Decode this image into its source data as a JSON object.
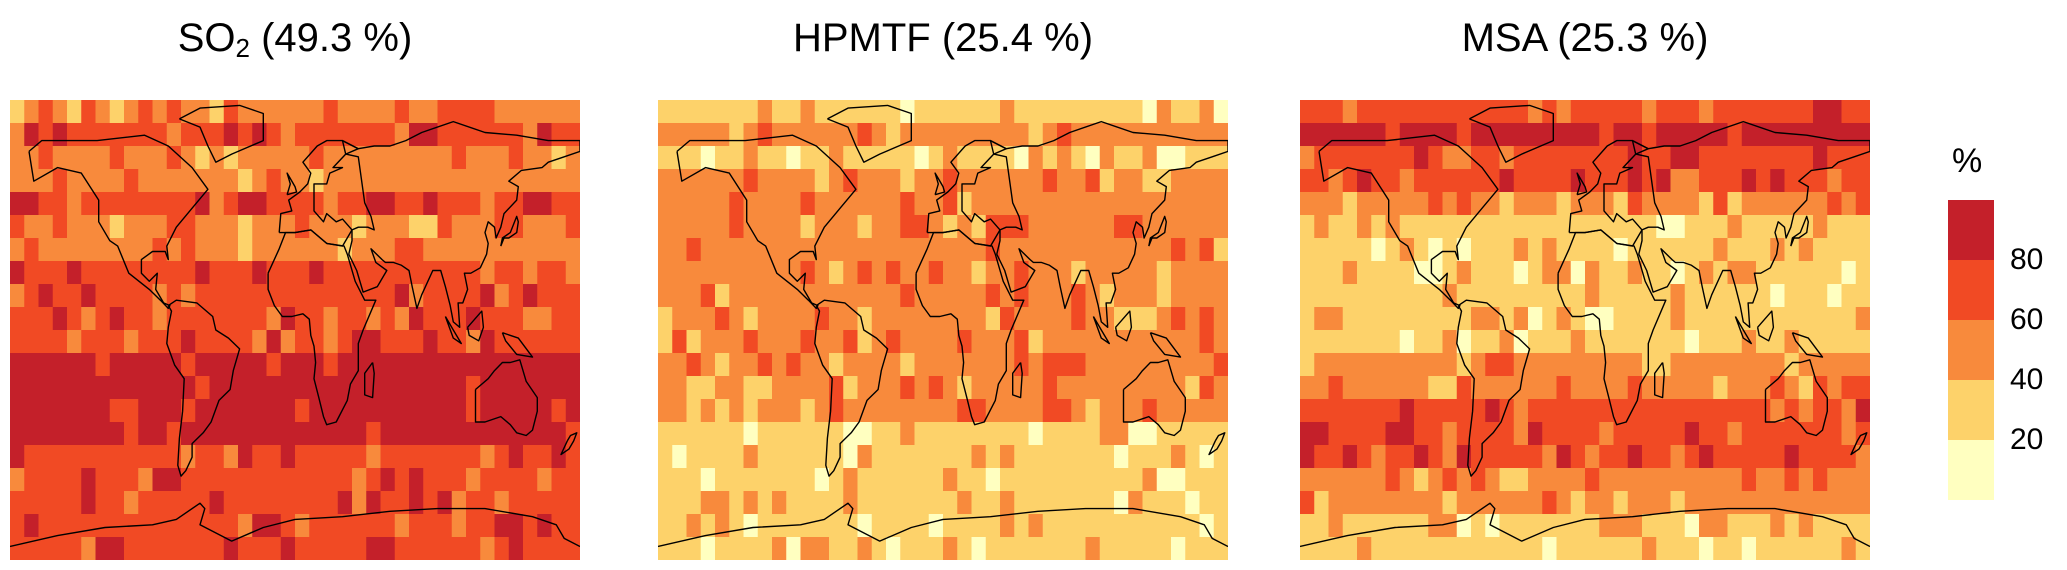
{
  "panels": [
    {
      "species": "SO",
      "subscript": "2",
      "share": "(49.3 %)",
      "zoneBase": [
        2,
        3,
        2,
        2,
        3,
        2,
        2,
        3,
        3,
        3,
        3,
        4,
        4,
        4,
        4,
        3,
        3,
        3,
        3,
        3
      ]
    },
    {
      "species": "HPMTF",
      "subscript": "",
      "share": "(25.4 %)",
      "zoneBase": [
        1,
        2,
        1,
        2,
        2,
        2,
        2,
        2,
        2,
        2,
        2,
        2,
        2,
        2,
        1,
        1,
        1,
        1,
        1,
        1
      ]
    },
    {
      "species": "MSA",
      "subscript": "",
      "share": "(25.3 %)",
      "zoneBase": [
        3,
        4,
        3,
        3,
        2,
        1,
        1,
        1,
        1,
        1,
        1,
        2,
        2,
        3,
        3,
        3,
        2,
        2,
        1,
        1
      ]
    }
  ],
  "legend": {
    "unit": "%",
    "ticks": [
      "80",
      "60",
      "40",
      "20"
    ],
    "colors": [
      "#ffffc0",
      "#fdd26a",
      "#f88a3c",
      "#f14a24",
      "#c4202a"
    ]
  },
  "colors": {
    "coastline": "#000000"
  }
}
